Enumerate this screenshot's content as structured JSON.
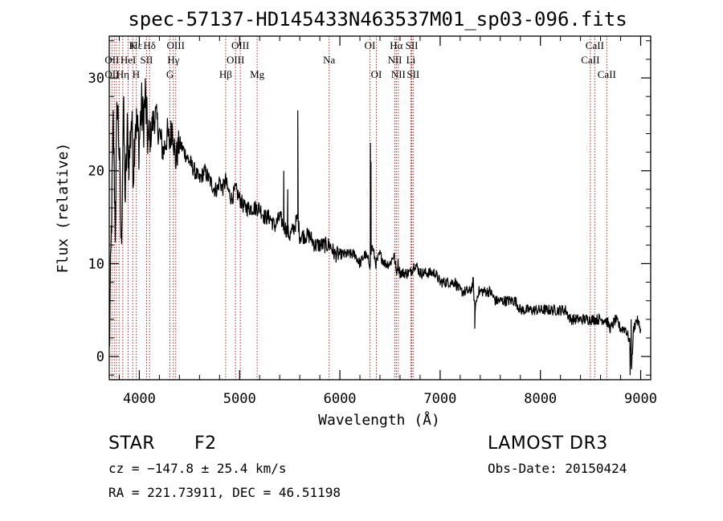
{
  "chart_data": {
    "type": "line",
    "title": "spec-57137-HD145433N463537M01_sp03-096.fits",
    "xlabel": "Wavelength (Å)",
    "ylabel": "Flux (relative)",
    "xlim": [
      3700,
      9100
    ],
    "ylim": [
      -2.5,
      34.5
    ],
    "xticks": [
      4000,
      5000,
      6000,
      7000,
      8000,
      9000
    ],
    "yticks": [
      0,
      10,
      20,
      30
    ],
    "grid": false,
    "series": [
      {
        "name": "flux",
        "x": [
          3700,
          3720,
          3740,
          3760,
          3780,
          3800,
          3820,
          3840,
          3860,
          3880,
          3900,
          3920,
          3940,
          3960,
          3980,
          4000,
          4020,
          4040,
          4060,
          4080,
          4100,
          4130,
          4160,
          4200,
          4240,
          4280,
          4300,
          4330,
          4360,
          4400,
          4450,
          4500,
          4550,
          4600,
          4650,
          4700,
          4750,
          4780,
          4800,
          4830,
          4861,
          4880,
          4920,
          4960,
          5000,
          5050,
          5100,
          5150,
          5200,
          5250,
          5300,
          5350,
          5400,
          5450,
          5500,
          5550,
          5580,
          5600,
          5650,
          5700,
          5750,
          5800,
          5850,
          5890,
          5900,
          5950,
          6000,
          6050,
          6100,
          6150,
          6200,
          6250,
          6300,
          6320,
          6340,
          6360,
          6400,
          6450,
          6500,
          6540,
          6563,
          6580,
          6600,
          6650,
          6700,
          6750,
          6800,
          6850,
          6900,
          6950,
          7000,
          7050,
          7100,
          7150,
          7200,
          7250,
          7300,
          7330,
          7345,
          7380,
          7400,
          7450,
          7500,
          7550,
          7600,
          7650,
          7700,
          7750,
          7800,
          7850,
          7900,
          7950,
          8000,
          8050,
          8100,
          8150,
          8200,
          8250,
          8300,
          8350,
          8400,
          8450,
          8500,
          8550,
          8600,
          8650,
          8700,
          8750,
          8800,
          8850,
          8880,
          8900,
          8910,
          8930,
          8960,
          9000
        ],
        "y": [
          0,
          13,
          25,
          14,
          28,
          22,
          11,
          27,
          17,
          24,
          21,
          26,
          20,
          26,
          24,
          23,
          27,
          25,
          28,
          24,
          23,
          25,
          26,
          24,
          22,
          24,
          23,
          25,
          21,
          23,
          22,
          21,
          20,
          19,
          20,
          19,
          18,
          18,
          19,
          18,
          19,
          18,
          17,
          18,
          17,
          16,
          16,
          16,
          16,
          15,
          15,
          14,
          15,
          14,
          13,
          14,
          15,
          13,
          13,
          13,
          12,
          12,
          12,
          12,
          12,
          11,
          11,
          11,
          11,
          11,
          10,
          11,
          10,
          12,
          11,
          10,
          11,
          10,
          10,
          11,
          9,
          10,
          9,
          9,
          9,
          10,
          9,
          9,
          9,
          9,
          8,
          8,
          8,
          8,
          7,
          7,
          7,
          8,
          5,
          7,
          7,
          7,
          7,
          6,
          6,
          6,
          6,
          6,
          5,
          5,
          5,
          5,
          5,
          5,
          5,
          5,
          5,
          5,
          4,
          4,
          4,
          4,
          4,
          4,
          4,
          4,
          3,
          4,
          3,
          3,
          2,
          1,
          -1,
          3,
          4,
          3
        ]
      }
    ],
    "lines": [
      {
        "label": "Hε",
        "x": 3970,
        "row": 0
      },
      {
        "label": "K",
        "x": 3934,
        "row": 0
      },
      {
        "label": "Hδ",
        "x": 4102,
        "row": 0
      },
      {
        "label": "OIII",
        "x": 4363,
        "row": 0
      },
      {
        "label": "OIII",
        "x": 5007,
        "row": 0
      },
      {
        "label": "OI",
        "x": 6300,
        "row": 0
      },
      {
        "label": "Hα",
        "x": 6563,
        "row": 0
      },
      {
        "label": "SII",
        "x": 6717,
        "row": 0
      },
      {
        "label": "CaII",
        "x": 8542,
        "row": 0
      },
      {
        "label": "OII",
        "x": 3727,
        "row": 1
      },
      {
        "label": "HeI",
        "x": 3889,
        "row": 1
      },
      {
        "label": "SII",
        "x": 4072,
        "row": 1
      },
      {
        "label": "Hγ",
        "x": 4340,
        "row": 1
      },
      {
        "label": "OIII",
        "x": 4959,
        "row": 1
      },
      {
        "label": "Na",
        "x": 5893,
        "row": 1
      },
      {
        "label": "NII",
        "x": 6548,
        "row": 1
      },
      {
        "label": "Li",
        "x": 6708,
        "row": 1
      },
      {
        "label": "CaII",
        "x": 8498,
        "row": 1
      },
      {
        "label": "OII",
        "x": 3727,
        "row": 2
      },
      {
        "label": "Hη",
        "x": 3835,
        "row": 2
      },
      {
        "label": "H",
        "x": 3968,
        "row": 2
      },
      {
        "label": "G",
        "x": 4305,
        "row": 2
      },
      {
        "label": "Hβ",
        "x": 4861,
        "row": 2
      },
      {
        "label": "Mg",
        "x": 5175,
        "row": 2
      },
      {
        "label": "OI",
        "x": 6364,
        "row": 2
      },
      {
        "label": "NII",
        "x": 6583,
        "row": 2
      },
      {
        "label": "SII",
        "x": 6731,
        "row": 2
      },
      {
        "label": "CaII",
        "x": 8662,
        "row": 2
      }
    ],
    "line_marker_positions": [
      3727,
      3750,
      3771,
      3798,
      3835,
      3889,
      3934,
      3970,
      4072,
      4102,
      4305,
      4340,
      4363,
      4861,
      4959,
      5007,
      5175,
      5893,
      6300,
      6364,
      6548,
      6563,
      6583,
      6708,
      6717,
      6731,
      8498,
      8542,
      8662
    ]
  },
  "info": {
    "object_type": "STAR",
    "subclass": "F2",
    "survey": "LAMOST DR3",
    "cz": "cz = −147.8 ± 25.4 km/s",
    "obs_date": "Obs-Date: 20150424",
    "radec": "RA = 221.73911, DEC =  46.51198"
  },
  "colors": {
    "spectrum": "#000000",
    "marker": "#b22222",
    "axis": "#000000"
  }
}
